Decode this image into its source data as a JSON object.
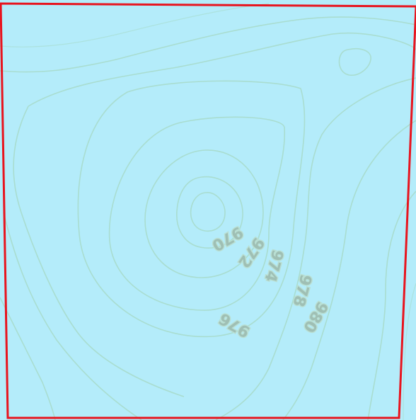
{
  "map": {
    "background_color": "#b4ecfa",
    "contour_color": "#a7dccb",
    "boundary_color": "#e8141e",
    "contour_labels": [
      "970",
      "972",
      "974",
      "976",
      "978",
      "980"
    ]
  }
}
